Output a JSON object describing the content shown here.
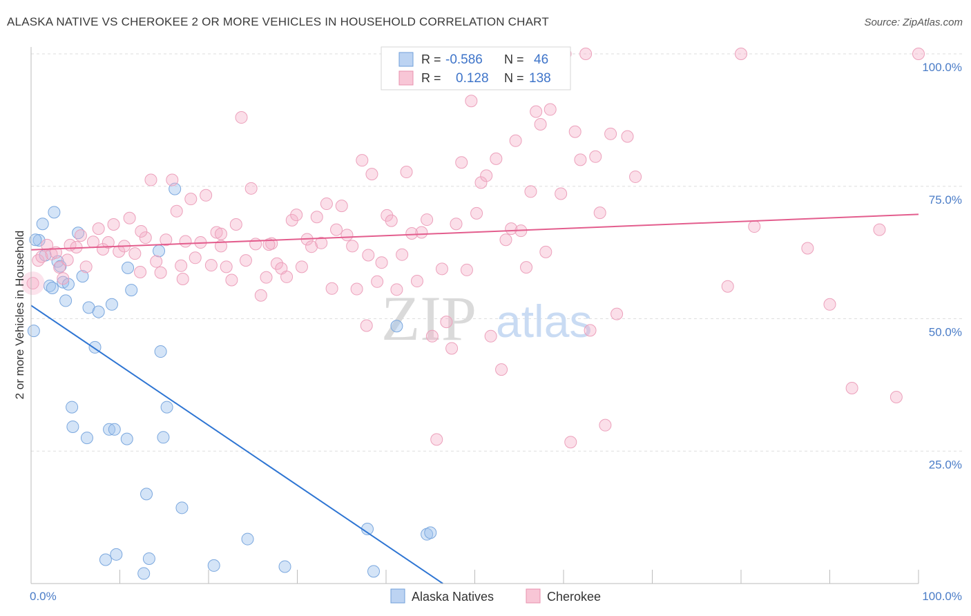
{
  "title": "ALASKA NATIVE VS CHEROKEE 2 OR MORE VEHICLES IN HOUSEHOLD CORRELATION CHART",
  "source": "Source: ZipAtlas.com",
  "watermark": {
    "zip": "ZIP",
    "atlas": "atlas"
  },
  "legend": {
    "r_label": "R =",
    "n_label": "N =",
    "rows": [
      {
        "r": "-0.586",
        "n": "46"
      },
      {
        "r": "0.128",
        "n": "138"
      }
    ]
  },
  "chart_data": {
    "type": "scatter",
    "title": "ALASKA NATIVE VS CHEROKEE 2 OR MORE VEHICLES IN HOUSEHOLD CORRELATION CHART",
    "xlabel": "",
    "ylabel": "2 or more Vehicles in Household",
    "xlim": [
      0,
      100
    ],
    "ylim": [
      0,
      100
    ],
    "x_tick_labels": [
      "0.0%",
      "100.0%"
    ],
    "y_ticks": [
      25,
      50,
      75,
      100
    ],
    "y_tick_labels": [
      "25.0%",
      "50.0%",
      "75.0%",
      "100.0%"
    ],
    "grid": true,
    "legend_position": "top-center",
    "series": [
      {
        "name": "Alaska Natives",
        "color": "#92b9ea",
        "line_color": "#2e75d3",
        "trend": {
          "x": [
            0,
            46.4
          ],
          "y": [
            52.5,
            0
          ]
        },
        "points": [
          [
            0.3,
            47.7
          ],
          [
            0.9,
            64.8
          ],
          [
            1.3,
            67.9
          ],
          [
            1.6,
            62.0
          ],
          [
            2.1,
            56.2
          ],
          [
            2.4,
            55.8
          ],
          [
            2.6,
            70.1
          ],
          [
            3.0,
            60.8
          ],
          [
            3.3,
            59.9
          ],
          [
            3.6,
            56.9
          ],
          [
            3.9,
            53.4
          ],
          [
            4.2,
            56.5
          ],
          [
            5.3,
            66.2
          ],
          [
            5.8,
            58.0
          ],
          [
            6.5,
            52.1
          ],
          [
            7.2,
            44.6
          ],
          [
            7.6,
            51.3
          ],
          [
            8.4,
            4.5
          ],
          [
            8.8,
            29.1
          ],
          [
            9.1,
            52.7
          ],
          [
            9.4,
            29.1
          ],
          [
            9.6,
            5.5
          ],
          [
            10.8,
            27.3
          ],
          [
            10.9,
            59.6
          ],
          [
            11.3,
            55.4
          ],
          [
            12.7,
            1.9
          ],
          [
            13.0,
            16.9
          ],
          [
            13.3,
            4.7
          ],
          [
            14.4,
            62.8
          ],
          [
            14.6,
            43.8
          ],
          [
            14.9,
            27.6
          ],
          [
            15.3,
            33.3
          ],
          [
            16.2,
            74.5
          ],
          [
            17.0,
            14.3
          ],
          [
            20.6,
            3.4
          ],
          [
            24.4,
            8.4
          ],
          [
            28.6,
            3.2
          ],
          [
            37.9,
            10.3
          ],
          [
            38.6,
            2.3
          ],
          [
            41.2,
            48.6
          ],
          [
            44.6,
            9.3
          ],
          [
            45.0,
            9.6
          ],
          [
            4.6,
            33.3
          ],
          [
            4.7,
            29.6
          ],
          [
            6.3,
            27.5
          ],
          [
            0.5,
            64.9
          ]
        ]
      },
      {
        "name": "Cherokee",
        "color": "#f2a8c0",
        "line_color": "#e35d8d",
        "trend": {
          "x": [
            0,
            100
          ],
          "y": [
            63.0,
            69.7
          ]
        },
        "points": [
          [
            0.2,
            56.7
          ],
          [
            0.8,
            61.0
          ],
          [
            1.2,
            61.7
          ],
          [
            1.8,
            63.9
          ],
          [
            2.3,
            62.2
          ],
          [
            2.8,
            62.5
          ],
          [
            3.2,
            59.7
          ],
          [
            3.6,
            57.6
          ],
          [
            4.1,
            61.1
          ],
          [
            4.4,
            63.9
          ],
          [
            5.1,
            63.5
          ],
          [
            5.6,
            65.7
          ],
          [
            6.2,
            59.8
          ],
          [
            7.0,
            64.5
          ],
          [
            7.6,
            67.0
          ],
          [
            8.1,
            63.1
          ],
          [
            8.7,
            64.4
          ],
          [
            9.3,
            67.8
          ],
          [
            9.9,
            62.7
          ],
          [
            10.5,
            63.7
          ],
          [
            11.1,
            69.0
          ],
          [
            11.7,
            62.3
          ],
          [
            12.3,
            58.8
          ],
          [
            12.9,
            65.3
          ],
          [
            13.5,
            76.2
          ],
          [
            14.1,
            60.8
          ],
          [
            14.6,
            58.7
          ],
          [
            15.2,
            64.9
          ],
          [
            15.9,
            76.2
          ],
          [
            16.4,
            70.3
          ],
          [
            16.9,
            60.0
          ],
          [
            17.4,
            64.6
          ],
          [
            18.0,
            72.6
          ],
          [
            18.5,
            61.5
          ],
          [
            19.1,
            64.4
          ],
          [
            19.7,
            73.3
          ],
          [
            20.3,
            60.1
          ],
          [
            20.9,
            66.3
          ],
          [
            21.4,
            63.7
          ],
          [
            22.0,
            59.8
          ],
          [
            22.6,
            57.3
          ],
          [
            23.1,
            67.8
          ],
          [
            23.7,
            88.0
          ],
          [
            24.2,
            61.0
          ],
          [
            24.8,
            74.6
          ],
          [
            25.3,
            64.1
          ],
          [
            25.9,
            54.4
          ],
          [
            26.5,
            57.8
          ],
          [
            27.1,
            64.2
          ],
          [
            27.7,
            60.4
          ],
          [
            28.2,
            59.5
          ],
          [
            28.8,
            57.9
          ],
          [
            29.4,
            68.6
          ],
          [
            29.9,
            69.6
          ],
          [
            30.5,
            59.8
          ],
          [
            31.1,
            65.0
          ],
          [
            31.6,
            63.6
          ],
          [
            32.2,
            69.2
          ],
          [
            32.7,
            64.3
          ],
          [
            33.3,
            71.7
          ],
          [
            33.9,
            55.7
          ],
          [
            34.4,
            66.8
          ],
          [
            35.0,
            71.3
          ],
          [
            35.6,
            65.8
          ],
          [
            36.2,
            63.7
          ],
          [
            36.7,
            55.6
          ],
          [
            37.3,
            79.9
          ],
          [
            37.8,
            48.7
          ],
          [
            38.4,
            77.3
          ],
          [
            39.0,
            57.0
          ],
          [
            39.5,
            60.6
          ],
          [
            40.1,
            69.5
          ],
          [
            40.6,
            68.5
          ],
          [
            41.2,
            55.5
          ],
          [
            41.8,
            62.1
          ],
          [
            42.3,
            77.7
          ],
          [
            42.9,
            66.1
          ],
          [
            43.5,
            57.1
          ],
          [
            44.0,
            66.3
          ],
          [
            44.6,
            68.7
          ],
          [
            45.2,
            46.7
          ],
          [
            45.7,
            27.2
          ],
          [
            46.3,
            59.4
          ],
          [
            46.8,
            49.4
          ],
          [
            47.4,
            44.4
          ],
          [
            47.9,
            67.9
          ],
          [
            48.5,
            79.5
          ],
          [
            49.1,
            59.2
          ],
          [
            49.6,
            91.1
          ],
          [
            50.2,
            69.9
          ],
          [
            50.7,
            75.7
          ],
          [
            51.3,
            77.0
          ],
          [
            51.8,
            46.7
          ],
          [
            52.4,
            80.2
          ],
          [
            53.0,
            40.4
          ],
          [
            53.5,
            64.9
          ],
          [
            54.1,
            67.0
          ],
          [
            54.6,
            83.6
          ],
          [
            55.2,
            66.6
          ],
          [
            55.8,
            59.7
          ],
          [
            56.3,
            74.0
          ],
          [
            56.9,
            89.1
          ],
          [
            57.4,
            86.7
          ],
          [
            58.0,
            62.6
          ],
          [
            58.5,
            89.5
          ],
          [
            59.1,
            100.0
          ],
          [
            59.7,
            73.6
          ],
          [
            60.2,
            100.0
          ],
          [
            60.8,
            26.7
          ],
          [
            61.3,
            85.3
          ],
          [
            61.9,
            80.0
          ],
          [
            62.5,
            100.0
          ],
          [
            63.0,
            47.8
          ],
          [
            63.6,
            80.6
          ],
          [
            64.1,
            70.0
          ],
          [
            64.7,
            29.9
          ],
          [
            65.3,
            84.9
          ],
          [
            66.0,
            50.9
          ],
          [
            67.2,
            84.4
          ],
          [
            68.1,
            76.8
          ],
          [
            78.5,
            56.1
          ],
          [
            80.0,
            100.0
          ],
          [
            81.5,
            67.4
          ],
          [
            87.5,
            63.3
          ],
          [
            90.0,
            52.7
          ],
          [
            92.5,
            36.9
          ],
          [
            95.6,
            66.8
          ],
          [
            97.5,
            35.2
          ],
          [
            100.0,
            100.0
          ],
          [
            55.5,
            100.0
          ],
          [
            38.0,
            62.0
          ],
          [
            26.8,
            64.0
          ],
          [
            21.4,
            66.0
          ],
          [
            12.4,
            66.5
          ],
          [
            17.1,
            57.5
          ]
        ]
      }
    ]
  }
}
